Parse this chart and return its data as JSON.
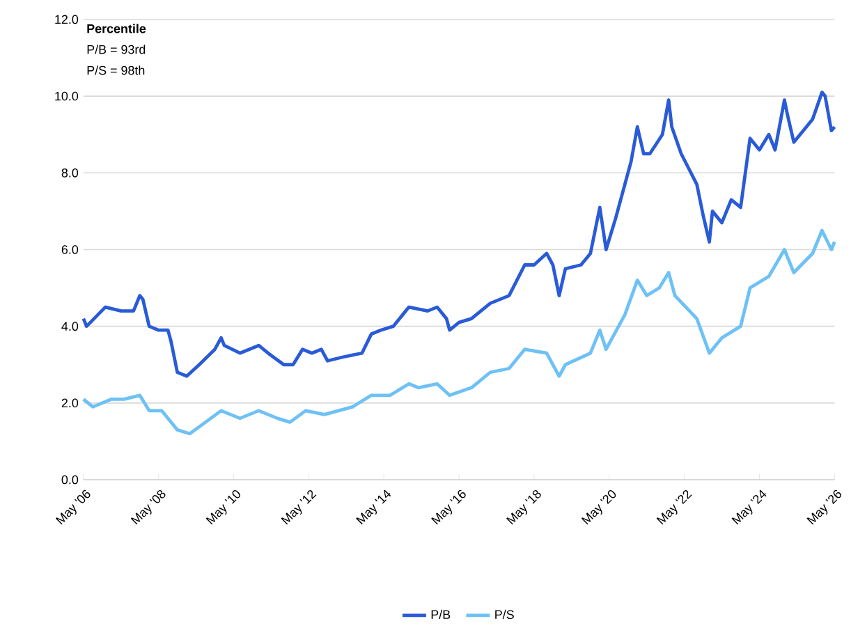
{
  "chart_data": {
    "type": "line",
    "annotations": [
      "Percentile",
      "P/B = 93rd",
      "P/S = 98th"
    ],
    "series": [
      {
        "name": "P/B",
        "color": "#2a5bd7",
        "x": [
          "2006-05",
          "2006-06",
          "2006-12",
          "2007-05",
          "2007-09",
          "2007-11",
          "2007-12",
          "2008-02",
          "2008-05",
          "2008-08",
          "2008-09",
          "2008-11",
          "2009-02",
          "2009-06",
          "2009-11",
          "2010-01",
          "2010-02",
          "2010-07",
          "2011-01",
          "2011-04",
          "2011-09",
          "2011-12",
          "2012-03",
          "2012-06",
          "2012-09",
          "2012-11",
          "2013-04",
          "2013-10",
          "2014-01",
          "2014-04",
          "2014-08",
          "2014-11",
          "2015-01",
          "2015-07",
          "2015-10",
          "2016-01",
          "2016-02",
          "2016-05",
          "2016-09",
          "2017-03",
          "2017-09",
          "2018-02",
          "2018-05",
          "2018-09",
          "2018-11",
          "2019-01",
          "2019-03",
          "2019-08",
          "2019-11",
          "2020-02",
          "2020-04",
          "2020-07",
          "2020-10",
          "2020-12",
          "2021-02",
          "2021-04",
          "2021-06",
          "2021-10",
          "2021-12",
          "2022-01",
          "2022-04",
          "2022-09",
          "2022-11",
          "2023-01",
          "2023-02",
          "2023-05",
          "2023-08",
          "2023-11",
          "2024-02",
          "2024-05",
          "2024-08",
          "2024-10",
          "2025-01",
          "2025-02",
          "2025-04",
          "2025-10",
          "2026-01",
          "2026-02",
          "2026-04",
          "2026-05"
        ],
        "values": [
          4.2,
          4.0,
          4.5,
          4.4,
          4.4,
          4.8,
          4.7,
          4.0,
          3.9,
          3.9,
          3.6,
          2.8,
          2.7,
          3.0,
          3.4,
          3.7,
          3.5,
          3.3,
          3.5,
          3.3,
          3.0,
          3.0,
          3.4,
          3.3,
          3.4,
          3.1,
          3.2,
          3.3,
          3.8,
          3.9,
          4.0,
          4.3,
          4.5,
          4.4,
          4.5,
          4.2,
          3.9,
          4.1,
          4.2,
          4.6,
          4.8,
          5.6,
          5.6,
          5.9,
          5.6,
          4.8,
          5.5,
          5.6,
          5.9,
          7.1,
          6.0,
          6.8,
          7.7,
          8.3,
          9.2,
          8.5,
          8.5,
          9.0,
          9.9,
          9.2,
          8.5,
          7.7,
          6.9,
          6.2,
          7.0,
          6.7,
          7.3,
          7.1,
          8.9,
          8.6,
          9.0,
          8.6,
          9.9,
          9.5,
          8.8,
          9.4,
          10.1,
          10.0,
          9.1,
          9.2
        ]
      },
      {
        "name": "P/S",
        "color": "#6ec1f5",
        "x": [
          "2006-05",
          "2006-08",
          "2007-02",
          "2007-06",
          "2007-11",
          "2008-02",
          "2008-06",
          "2008-11",
          "2009-03",
          "2009-08",
          "2010-01",
          "2010-07",
          "2011-01",
          "2011-07",
          "2011-11",
          "2012-04",
          "2012-10",
          "2013-07",
          "2014-01",
          "2014-07",
          "2015-01",
          "2015-04",
          "2015-10",
          "2016-02",
          "2016-09",
          "2017-03",
          "2017-09",
          "2018-02",
          "2018-09",
          "2019-01",
          "2019-03",
          "2019-11",
          "2020-02",
          "2020-04",
          "2020-10",
          "2021-02",
          "2021-05",
          "2021-09",
          "2021-12",
          "2022-02",
          "2022-09",
          "2023-01",
          "2023-05",
          "2023-11",
          "2024-02",
          "2024-08",
          "2025-01",
          "2025-04",
          "2025-10",
          "2026-01",
          "2026-04",
          "2026-05"
        ],
        "values": [
          2.1,
          1.9,
          2.1,
          2.1,
          2.2,
          1.8,
          1.8,
          1.3,
          1.2,
          1.5,
          1.8,
          1.6,
          1.8,
          1.6,
          1.5,
          1.8,
          1.7,
          1.9,
          2.2,
          2.2,
          2.5,
          2.4,
          2.5,
          2.2,
          2.4,
          2.8,
          2.9,
          3.4,
          3.3,
          2.7,
          3.0,
          3.3,
          3.9,
          3.4,
          4.3,
          5.2,
          4.8,
          5.0,
          5.4,
          4.8,
          4.2,
          3.3,
          3.7,
          4.0,
          5.0,
          5.3,
          6.0,
          5.4,
          5.9,
          6.5,
          6.0,
          6.2
        ]
      }
    ],
    "xlim": [
      "2006-05",
      "2026-05"
    ],
    "xticks": [
      {
        "value": "2006-05",
        "label": "May '06"
      },
      {
        "value": "2008-05",
        "label": "May '08"
      },
      {
        "value": "2010-05",
        "label": "May '10"
      },
      {
        "value": "2012-05",
        "label": "May '12"
      },
      {
        "value": "2014-05",
        "label": "May '14"
      },
      {
        "value": "2016-05",
        "label": "May '16"
      },
      {
        "value": "2018-05",
        "label": "May '18"
      },
      {
        "value": "2020-05",
        "label": "May '20"
      },
      {
        "value": "2022-05",
        "label": "May '22"
      },
      {
        "value": "2024-05",
        "label": "May '24"
      },
      {
        "value": "2026-05",
        "label": "May '26"
      }
    ],
    "ylim": [
      0,
      12
    ],
    "yticks": [
      {
        "value": 0,
        "label": "0.0"
      },
      {
        "value": 2,
        "label": "2.0"
      },
      {
        "value": 4,
        "label": "4.0"
      },
      {
        "value": 6,
        "label": "6.0"
      },
      {
        "value": 8,
        "label": "8.0"
      },
      {
        "value": 10,
        "label": "10.0"
      },
      {
        "value": 12,
        "label": "12.0"
      }
    ],
    "grid": "y",
    "legend": "bottom",
    "marker": "none",
    "line_style": "solid"
  }
}
